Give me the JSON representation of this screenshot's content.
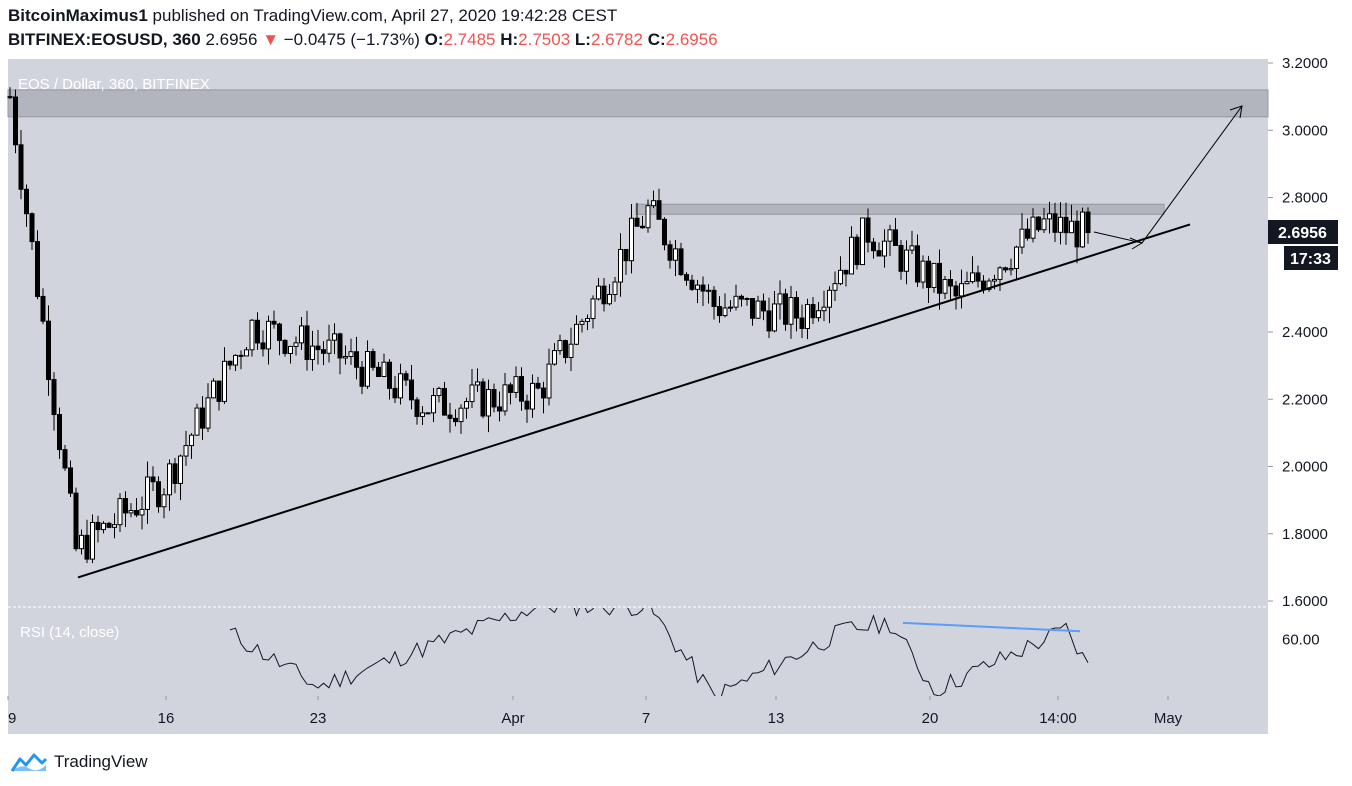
{
  "header": {
    "author": "BitcoinMaximus1",
    "published_text": "published on TradingView.com, April 27, 2020 19:42:28 CEST",
    "symbol": "BITFINEX:EOSUSD, 360",
    "last": "2.6956",
    "change_arrow": "▼",
    "change": "−0.0475 (−1.73%)",
    "o_label": "O:",
    "o_value": "2.7485",
    "h_label": "H:",
    "h_value": "2.7503",
    "l_label": "L:",
    "l_value": "2.6782",
    "c_label": "C:",
    "c_value": "2.6956"
  },
  "chart_data": {
    "type": "candlestick",
    "title": "EOS / Dollar, 360, BITFINEX",
    "ylim": [
      1.57,
      3.21
    ],
    "y_ticks": [
      "3.2000",
      "3.0000",
      "2.8000",
      "2.4000",
      "2.2000",
      "2.0000",
      "1.8000",
      "1.6000"
    ],
    "x_ticks": [
      "9",
      "16",
      "23",
      "Apr",
      "7",
      "13",
      "20",
      "14:00",
      "May"
    ],
    "price_label": "2.6956",
    "countdown_label": "17:33",
    "colors": {
      "background": "#d1d4dc",
      "candle": "#000000",
      "zone": "#b2b5be",
      "trendline": "#000000",
      "rsi_divergence": "#5b9cf6"
    },
    "key_prices": [
      {
        "x": "Mar 9",
        "close": 3.1
      },
      {
        "x": "Mar 12",
        "close": 1.75
      },
      {
        "x": "Mar 16",
        "close": 1.95
      },
      {
        "x": "Mar 20",
        "close": 2.42
      },
      {
        "x": "Mar 24",
        "close": 2.33
      },
      {
        "x": "Mar 28",
        "close": 2.18
      },
      {
        "x": "Apr 2",
        "close": 2.22
      },
      {
        "x": "Apr 7",
        "close": 2.76
      },
      {
        "x": "Apr 10",
        "close": 2.48
      },
      {
        "x": "Apr 14",
        "close": 2.45
      },
      {
        "x": "Apr 17",
        "close": 2.7
      },
      {
        "x": "Apr 21",
        "close": 2.5
      },
      {
        "x": "Apr 25",
        "close": 2.72
      },
      {
        "x": "Apr 27",
        "close": 2.6956
      }
    ],
    "resistance_zones": [
      [
        3.04,
        3.12
      ],
      [
        2.75,
        2.78
      ]
    ],
    "ascending_trendline": [
      {
        "x": "Mar 12",
        "y": 1.67
      },
      {
        "x": "Apr 30",
        "y": 2.72
      }
    ],
    "rsi": {
      "label": "RSI (14, close)",
      "tick": "60.00",
      "ylim": [
        43,
        70
      ],
      "key_values": [
        {
          "x": "Mar 19",
          "value": 62
        },
        {
          "x": "Mar 23",
          "value": 46
        },
        {
          "x": "Apr 2",
          "value": 70
        },
        {
          "x": "Apr 7",
          "value": 70
        },
        {
          "x": "Apr 10",
          "value": 43
        },
        {
          "x": "Apr 16",
          "value": 63
        },
        {
          "x": "Apr 18",
          "value": 65
        },
        {
          "x": "Apr 20",
          "value": 45
        },
        {
          "x": "Apr 26",
          "value": 63
        },
        {
          "x": "Apr 27",
          "value": 52
        }
      ]
    }
  },
  "footer": {
    "brand": "TradingView"
  }
}
